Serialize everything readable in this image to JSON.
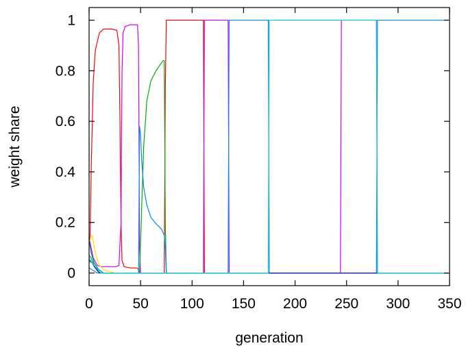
{
  "chart_data": {
    "type": "line",
    "title": "",
    "xlabel": "generation",
    "ylabel": "weight share",
    "xlim": [
      0,
      350
    ],
    "ylim": [
      -0.05,
      1.05
    ],
    "xticks": [
      0,
      50,
      100,
      150,
      200,
      250,
      300,
      350
    ],
    "yticks": [
      0,
      0.2,
      0.4,
      0.6,
      0.8,
      1
    ],
    "x_tick_labels": [
      "0",
      "50",
      "100",
      "150",
      "200",
      "250",
      "300",
      "350"
    ],
    "y_tick_labels": [
      "0",
      "0.2",
      "0.4",
      "0.6",
      "0.8",
      "1"
    ],
    "grid": false,
    "legend": "none",
    "series": [
      {
        "color": "#ff0000",
        "points": [
          [
            0,
            0.12
          ],
          [
            1,
            0.15
          ],
          [
            2,
            0.4
          ],
          [
            4,
            0.75
          ],
          [
            6,
            0.88
          ],
          [
            10,
            0.95
          ],
          [
            14,
            0.965
          ],
          [
            22,
            0.965
          ],
          [
            27,
            0.96
          ],
          [
            29,
            0.9
          ],
          [
            30,
            0.6
          ],
          [
            31,
            0.2
          ],
          [
            32,
            0.05
          ],
          [
            34,
            0.025
          ],
          [
            40,
            0.02
          ],
          [
            46,
            0.02
          ],
          [
            48,
            0.015
          ],
          [
            49,
            0.0
          ],
          [
            72,
            0.0
          ],
          [
            73,
            0.0
          ],
          [
            74,
            0.73
          ],
          [
            75,
            1.0
          ],
          [
            111,
            1.0
          ],
          [
            112,
            0.0
          ],
          [
            350,
            0.0
          ]
        ]
      },
      {
        "color": "#cc00ff",
        "points": [
          [
            0,
            0.14
          ],
          [
            2,
            0.1
          ],
          [
            4,
            0.06
          ],
          [
            8,
            0.03
          ],
          [
            12,
            0.025
          ],
          [
            26,
            0.025
          ],
          [
            29,
            0.03
          ],
          [
            31,
            0.2
          ],
          [
            32,
            0.8
          ],
          [
            33,
            0.95
          ],
          [
            35,
            0.975
          ],
          [
            40,
            0.982
          ],
          [
            47,
            0.982
          ],
          [
            48,
            0.9
          ],
          [
            49,
            0.1
          ],
          [
            50,
            0.0
          ],
          [
            111,
            0.0
          ],
          [
            112,
            1.0
          ],
          [
            135,
            1.0
          ],
          [
            136,
            0.0
          ],
          [
            244,
            0.0
          ],
          [
            245,
            1.0
          ],
          [
            279,
            1.0
          ],
          [
            280,
            0.0
          ],
          [
            350,
            0.0
          ]
        ]
      },
      {
        "color": "#00aa00",
        "points": [
          [
            0,
            0.07
          ],
          [
            2,
            0.06
          ],
          [
            5,
            0.03
          ],
          [
            8,
            0.01
          ],
          [
            12,
            0.0
          ],
          [
            49,
            0.0
          ],
          [
            51,
            0.25
          ],
          [
            53,
            0.5
          ],
          [
            56,
            0.68
          ],
          [
            60,
            0.76
          ],
          [
            65,
            0.8
          ],
          [
            70,
            0.83
          ],
          [
            72,
            0.84
          ],
          [
            73,
            0.84
          ],
          [
            74,
            0.2
          ],
          [
            75,
            0.0
          ],
          [
            350,
            0.0
          ]
        ]
      },
      {
        "color": "#0088ff",
        "points": [
          [
            0,
            0.02
          ],
          [
            4,
            0.01
          ],
          [
            8,
            0.0
          ],
          [
            48,
            0.0
          ],
          [
            49,
            0.58
          ],
          [
            50,
            0.55
          ],
          [
            51,
            0.45
          ],
          [
            53,
            0.34
          ],
          [
            56,
            0.27
          ],
          [
            60,
            0.22
          ],
          [
            65,
            0.195
          ],
          [
            70,
            0.175
          ],
          [
            73,
            0.15
          ],
          [
            74,
            0.1
          ],
          [
            75,
            0.0
          ],
          [
            135,
            0.0
          ],
          [
            136,
            1.0
          ],
          [
            174,
            1.0
          ],
          [
            175,
            0.0
          ],
          [
            244,
            0.0
          ],
          [
            245,
            0.0
          ],
          [
            279,
            0.0
          ],
          [
            280,
            1.0
          ],
          [
            350,
            1.0
          ]
        ]
      },
      {
        "color": "#ffdd00",
        "points": [
          [
            0,
            0.12
          ],
          [
            3,
            0.15
          ],
          [
            6,
            0.08
          ],
          [
            10,
            0.03
          ],
          [
            15,
            0.01
          ],
          [
            25,
            0.0
          ],
          [
            350,
            0.0
          ]
        ]
      },
      {
        "color": "#008080",
        "points": [
          [
            0,
            0.13
          ],
          [
            2,
            0.08
          ],
          [
            5,
            0.04
          ],
          [
            9,
            0.015
          ],
          [
            14,
            0.0
          ],
          [
            350,
            0.0
          ]
        ]
      },
      {
        "color": "#0000cc",
        "points": [
          [
            0,
            0.05
          ],
          [
            3,
            0.04
          ],
          [
            6,
            0.02
          ],
          [
            10,
            0.0
          ],
          [
            350,
            0.0
          ]
        ]
      },
      {
        "color": "#00cccc",
        "points": [
          [
            0,
            0.06
          ],
          [
            3,
            0.04
          ],
          [
            7,
            0.02
          ],
          [
            11,
            0.0
          ],
          [
            174,
            0.0
          ],
          [
            175,
            1.0
          ],
          [
            244,
            1.0
          ],
          [
            245,
            1.0
          ],
          [
            279,
            1.0
          ],
          [
            280,
            0.0
          ],
          [
            350,
            0.0
          ]
        ]
      }
    ]
  }
}
